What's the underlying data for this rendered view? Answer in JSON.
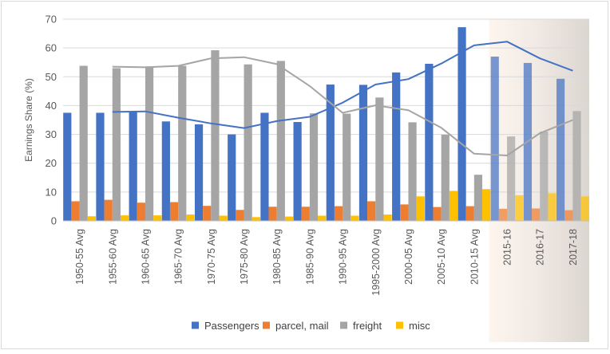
{
  "chart_data": {
    "type": "bar",
    "title": "",
    "xlabel": "",
    "ylabel": "Earnings Share (%)",
    "ylim": [
      0,
      70
    ],
    "yticks": [
      0,
      10,
      20,
      30,
      40,
      50,
      60,
      70
    ],
    "grid": true,
    "legend_position": "bottom",
    "highlight_region": {
      "from_category": "2015-16",
      "to_category": "2017-18"
    },
    "categories": [
      "1950-55 Avg",
      "1955-60 Avg",
      "1960-65 Avg",
      "1965-70 Avg",
      "1970-75 Avg",
      "1975-80 Avg",
      "1980-85 Avg",
      "1985-90 Avg",
      "1990-95 Avg",
      "1995-2000 Avg",
      "2000-05 Avg",
      "2005-10 Avg",
      "2010-15 Avg",
      "2015-16",
      "2016-17",
      "2017-18"
    ],
    "series": [
      {
        "name": "Passengers",
        "color": "#4472C4",
        "values": [
          37.5,
          37.5,
          38,
          34.5,
          33.5,
          30,
          37.5,
          34.3,
          47.3,
          47.2,
          51.5,
          54.5,
          67.2,
          57,
          54.8,
          49.3
        ]
      },
      {
        "name": "parcel, mail",
        "color": "#ED7D31",
        "values": [
          6.8,
          7.3,
          6.3,
          6.5,
          5.2,
          3.8,
          4.9,
          4.9,
          5.1,
          6.8,
          5.7,
          4.8,
          5.1,
          4.2,
          4.3,
          3.7
        ]
      },
      {
        "name": "freight",
        "color": "#A5A5A5",
        "values": [
          53.8,
          53,
          53.6,
          53.8,
          59.2,
          54.3,
          55.5,
          37.3,
          37.2,
          42.8,
          34.2,
          29.9,
          16,
          29.3,
          31,
          38.1
        ]
      },
      {
        "name": "misc",
        "color": "#FFC000",
        "values": [
          1.6,
          1.9,
          1.9,
          2.2,
          1.8,
          1.3,
          1.5,
          1.8,
          1.8,
          2.2,
          8.5,
          10.4,
          11,
          8.9,
          9.6,
          8.5
        ]
      }
    ],
    "trend_lines": [
      {
        "series": "Passengers",
        "color": "#4472C4",
        "values": [
          null,
          37.8,
          38,
          35.8,
          33.8,
          32.2,
          34.6,
          36.1,
          41,
          47.3,
          49.2,
          54.6,
          60.9,
          62.2,
          56.4,
          52.1
        ]
      },
      {
        "series": "freight",
        "color": "#A5A5A5",
        "values": [
          null,
          53.5,
          53.3,
          53.8,
          56.4,
          56.8,
          54.4,
          46.8,
          37.5,
          40.1,
          38.4,
          32.3,
          23.3,
          22.7,
          30.4,
          35
        ]
      }
    ]
  }
}
